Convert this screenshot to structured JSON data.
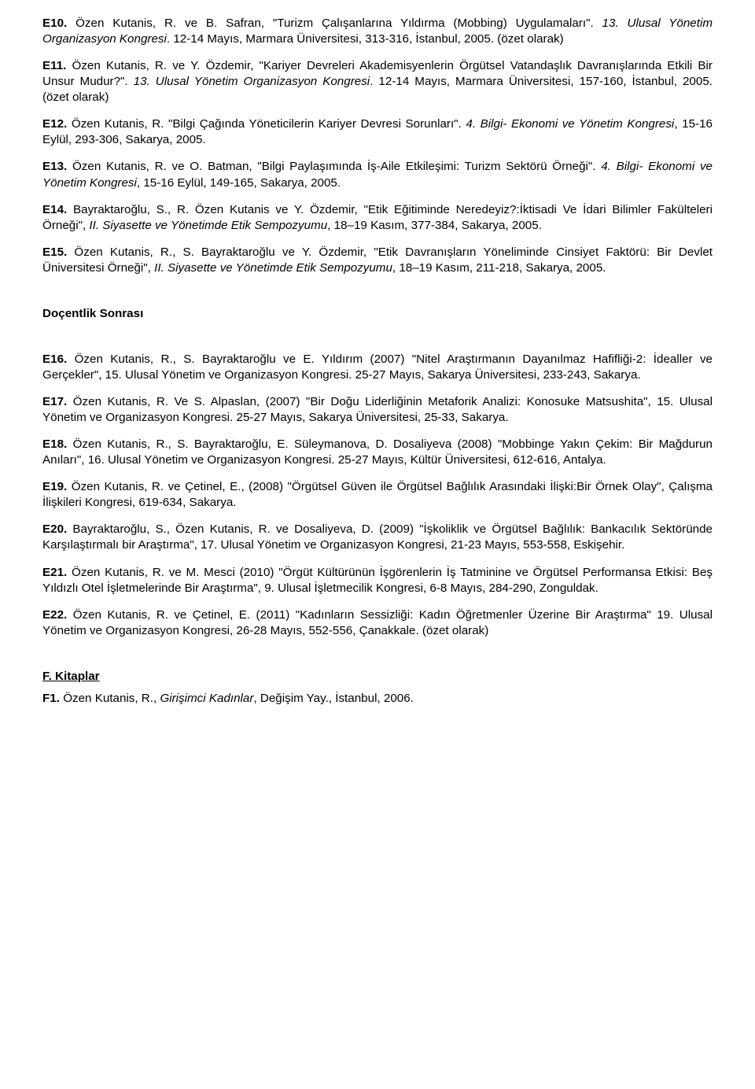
{
  "entries": [
    {
      "label": "E10.",
      "body_html": "Özen Kutanis, R. ve B. Safran, \"Turizm Çalışanlarına Yıldırma (Mobbing) Uygulamaları\". <i>13. Ulusal Yönetim Organizasyon Kongresi</i>. 12-14 Mayıs, Marmara Üniversitesi, 313-316, İstanbul, 2005. (özet olarak)"
    },
    {
      "label": "E11.",
      "body_html": "Özen Kutanis, R. ve Y. Özdemir, \"Kariyer Devreleri Akademisyenlerin Örgütsel Vatandaşlık Davranışlarında Etkili Bir Unsur Mudur?\". <i>13. Ulusal Yönetim Organizasyon Kongresi</i>. 12-14 Mayıs, Marmara Üniversitesi, 157-160, İstanbul, 2005. (özet olarak)"
    },
    {
      "label": "E12.",
      "body_html": "Özen Kutanis, R. \"Bilgi Çağında Yöneticilerin Kariyer Devresi Sorunları\". <i>4. Bilgi- Ekonomi ve Yönetim Kongresi</i>, 15-16 Eylül, 293-306, Sakarya, 2005."
    },
    {
      "label": "E13.",
      "body_html": "Özen Kutanis, R. ve O. Batman, \"Bilgi Paylaşımında İş-Aile Etkileşimi: Turizm Sektörü Örneği\". <i>4. Bilgi- Ekonomi ve Yönetim Kongresi</i>, 15-16 Eylül, 149-165, Sakarya, 2005."
    },
    {
      "label": "E14.",
      "body_html": "Bayraktaroğlu, S., R. Özen Kutanis ve Y. Özdemir, \"Etik Eğitiminde Neredeyiz?:İktisadi Ve İdari Bilimler Fakülteleri Örneği\", <i>II. Siyasette ve Yönetimde Etik Sempozyumu</i>, 18–19 Kasım, 377-384, Sakarya, 2005."
    },
    {
      "label": "E15.",
      "body_html": "Özen Kutanis, R., S. Bayraktaroğlu ve Y. Özdemir, \"Etik Davranışların Yöneliminde Cinsiyet Faktörü: Bir Devlet Üniversitesi Örneği\", <i>II. Siyasette ve Yönetimde Etik Sempozyumu</i>, 18–19 Kasım, 211-218, Sakarya, 2005."
    }
  ],
  "section_heading": "Doçentlik Sonrası",
  "entries2": [
    {
      "label": "E16.",
      "body_html": "Özen Kutanis, R., S. Bayraktaroğlu ve E. Yıldırım (2007) \"Nitel Araştırmanın Dayanılmaz Hafifliği-2: İdealler ve Gerçekler\", 15. Ulusal Yönetim ve Organizasyon Kongresi. 25-27 Mayıs, Sakarya Üniversitesi, 233-243, Sakarya."
    },
    {
      "label": "E17.",
      "body_html": "Özen Kutanis, R. Ve S. Alpaslan, (2007) \"Bir Doğu Liderliğinin Metaforik Analizi: Konosuke Matsushita\", 15. Ulusal Yönetim ve Organizasyon Kongresi. 25-27 Mayıs, Sakarya Üniversitesi, 25-33, Sakarya."
    },
    {
      "label": "E18.",
      "body_html": "Özen Kutanis, R., S. Bayraktaroğlu, E. Süleymanova, D. Dosaliyeva (2008) \"Mobbinge Yakın Çekim: Bir Mağdurun Anıları\", 16. Ulusal Yönetim ve Organizasyon Kongresi. 25-27 Mayıs, Kültür Üniversitesi, 612-616, Antalya."
    },
    {
      "label": "E19.",
      "body_html": "Özen Kutanis, R. ve Çetinel, E., (2008) \"Örgütsel Güven ile Örgütsel Bağlılık Arasındaki İlişki:Bir Örnek Olay\", Çalışma İlişkileri Kongresi, 619-634, Sakarya."
    },
    {
      "label": "E20.",
      "body_html": "Bayraktaroğlu, S., Özen Kutanis, R. ve Dosaliyeva, D. (2009) \"İşkoliklik ve Örgütsel Bağlılık: Bankacılık Sektöründe Karşılaştırmalı bir Araştırma\", 17. Ulusal Yönetim ve Organizasyon Kongresi, 21-23 Mayıs, 553-558, Eskişehir."
    },
    {
      "label": "E21.",
      "body_html": "Özen Kutanis, R. ve M. Mesci (2010) \"Örgüt Kültürünün İşgörenlerin İş Tatminine ve Örgütsel Performansa Etkisi: Beş Yıldızlı Otel İşletmelerinde Bir Araştırma\", 9. Ulusal İşletmecilik Kongresi, 6-8 Mayıs, 284-290, Zonguldak."
    },
    {
      "label": "E22.",
      "body_html": "Özen Kutanis, R. ve Çetinel, E. (2011) \"Kadınların Sessizliği: Kadın Öğretmenler Üzerine Bir Araştırma\" 19. Ulusal Yönetim ve Organizasyon Kongresi, 26-28 Mayıs, 552-556, Çanakkale. (özet olarak)"
    }
  ],
  "books_heading": "F. Kitaplar",
  "books": [
    {
      "label": "F1.",
      "body_html": "Özen Kutanis, R., <i>Girişimci Kadınlar</i>, Değişim Yay., İstanbul, 2006."
    }
  ]
}
